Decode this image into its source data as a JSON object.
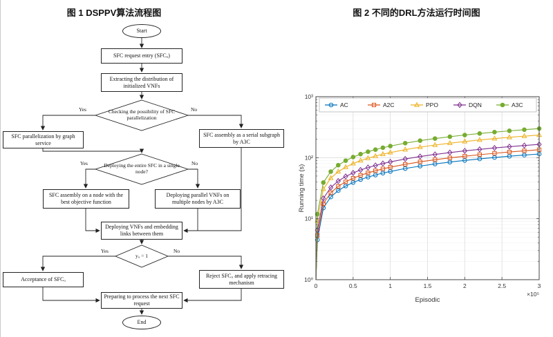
{
  "figure1": {
    "title": "图 1 DSPPV算法流程图",
    "nodes": {
      "start": "Start",
      "request_entry": "SFC request entry (SFCᵤ)",
      "extract": "Extracting the distribution of initialized VNFs",
      "check_parallel": "Checking the possibility of SFC parallelization",
      "parallelization": "SFC parallelization by graph service",
      "serial_assembly": "SFC assembly as a serial subgraph by A3C",
      "single_node_q": "Deploying the entire SFC in a single node?",
      "best_objective": "SFC assembly on a node with the best objective function",
      "parallel_deploy": "Deploying parallel VNFs on multiple nodes by A3C",
      "deploy_vnfs": "Deploying VNFs and embedding links between them",
      "yu_check": "yᵤ = 1",
      "acceptance": "Acceptance of SFCᵤ",
      "reject": "Reject SFCᵤ and apply retracing mechanism",
      "prepare_next": "Preparing to process the next SFC request",
      "end": "End"
    },
    "branch_labels": {
      "yes": "Yes",
      "no": "No"
    }
  },
  "figure2": {
    "title": "图 2 不同的DRL方法运行时间图"
  },
  "chart_data": {
    "type": "line",
    "title": "",
    "xlabel": "Episodic",
    "ylabel": "Running time (s)",
    "x_unit": "×10⁵",
    "xlim": [
      0,
      3
    ],
    "ylim": [
      1,
      1000
    ],
    "yscale": "log",
    "grid": true,
    "legend_position": "top-horizontal",
    "x_ticks": [
      0,
      0.5,
      1,
      1.5,
      2,
      2.5,
      3
    ],
    "x_tick_labels": [
      "0",
      "0.5",
      "1",
      "1.5",
      "2",
      "2.5",
      "3"
    ],
    "y_ticks": [
      "10⁰",
      "10¹",
      "10²",
      "10³"
    ],
    "x": [
      0,
      0.02,
      0.1,
      0.2,
      0.3,
      0.4,
      0.5,
      0.6,
      0.7,
      0.8,
      0.9,
      1.0,
      1.2,
      1.4,
      1.6,
      1.8,
      2.0,
      2.2,
      2.4,
      2.6,
      2.8,
      3.0
    ],
    "series": [
      {
        "name": "AC",
        "color": "#0072BD",
        "marker": "circle",
        "fill": "open",
        "values": [
          1,
          4.5,
          15,
          22.7,
          28.9,
          34.3,
          39.2,
          43.8,
          48.1,
          52,
          55.9,
          59.5,
          66.4,
          72.8,
          78.9,
          84.6,
          90.2,
          95.5,
          100.6,
          105.6,
          110.3,
          115
        ]
      },
      {
        "name": "A2C",
        "color": "#D95319",
        "marker": "square",
        "fill": "open",
        "values": [
          1,
          5.3,
          17.6,
          26.6,
          33.9,
          40.2,
          46,
          51.4,
          56.4,
          61,
          65.6,
          69.8,
          77.9,
          85.5,
          92.6,
          99.4,
          105.8,
          112.1,
          118.1,
          123.9,
          129.5,
          135
        ]
      },
      {
        "name": "PPO",
        "color": "#EDB120",
        "marker": "triangle",
        "fill": "open",
        "values": [
          1,
          9.3,
          30.6,
          46.3,
          59,
          70,
          80.1,
          89.5,
          98.2,
          106.2,
          114.2,
          121.5,
          135.6,
          148.8,
          161.2,
          173,
          184.2,
          195.1,
          205.6,
          215.7,
          225.4,
          235
        ]
      },
      {
        "name": "DQN",
        "color": "#7E2F8E",
        "marker": "diamond",
        "fill": "open",
        "values": [
          1,
          6.5,
          21.5,
          32.5,
          41.4,
          49.2,
          56.3,
          62.9,
          69,
          74.6,
          80.2,
          85.3,
          95.2,
          104.4,
          113.2,
          121.4,
          129.4,
          137,
          144.4,
          151.5,
          158.3,
          165
        ]
      },
      {
        "name": "A3C",
        "color": "#77AC30",
        "marker": "circle",
        "fill": "filled",
        "values": [
          1,
          11.9,
          39.1,
          59.1,
          75.3,
          89.4,
          102.3,
          114.3,
          125.4,
          135.6,
          145.8,
          155.1,
          173.1,
          190,
          205.8,
          220.8,
          235.2,
          249,
          262.5,
          275.4,
          287.7,
          300
        ]
      }
    ]
  }
}
